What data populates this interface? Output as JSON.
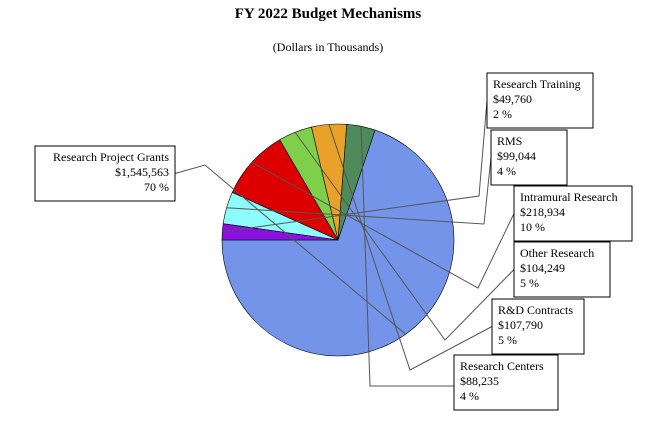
{
  "chart_data": {
    "type": "pie",
    "title": "FY 2022 Budget Mechanisms",
    "subtitle": "(Dollars in Thousands)",
    "slices": [
      {
        "name": "Research Project Grants",
        "amount": "$1,545,563",
        "percent_label": "70 %",
        "value": 1545563,
        "color": "#7394e8"
      },
      {
        "name": "Research Centers",
        "amount": "$88,235",
        "percent_label": "4 %",
        "value": 88235,
        "color": "#4e8a5a"
      },
      {
        "name": "R&D Contracts",
        "amount": "$107,790",
        "percent_label": "5 %",
        "value": 107790,
        "color": "#e8a22a"
      },
      {
        "name": "Other Research",
        "amount": "$104,249",
        "percent_label": "5 %",
        "value": 104249,
        "color": "#7ed04a"
      },
      {
        "name": "Intramural Research",
        "amount": "$218,934",
        "percent_label": "10 %",
        "value": 218934,
        "color": "#dd0000"
      },
      {
        "name": "RMS",
        "amount": "$99,044",
        "percent_label": "4 %",
        "value": 99044,
        "color": "#8cfcfc"
      },
      {
        "name": "Research Training",
        "amount": "$49,760",
        "percent_label": "2 %",
        "value": 49760,
        "color": "#8a10e0"
      }
    ]
  }
}
